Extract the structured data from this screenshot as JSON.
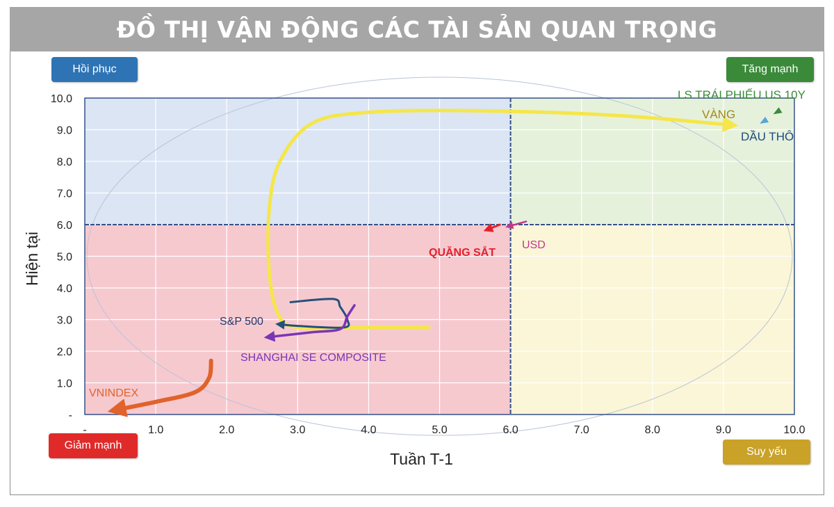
{
  "header": {
    "title": "ĐỒ THỊ VẬN ĐỘNG CÁC TÀI SẢN QUAN TRỌNG"
  },
  "quadrants": {
    "top_left": {
      "label": "Hồi phục",
      "color": "#2e74b5"
    },
    "top_right": {
      "label": "Tăng mạnh",
      "color": "#3a8a3a"
    },
    "bottom_left": {
      "label": "Giảm mạnh",
      "color": "#e02a2a"
    },
    "bottom_right": {
      "label": "Suy yếu",
      "color": "#c9a227"
    }
  },
  "chart_data": {
    "type": "scatter",
    "title": "ĐỒ THỊ VẬN ĐỘNG CÁC TÀI SẢN QUAN TRỌNG",
    "xlabel": "Tuần T-1",
    "ylabel": "Hiện tại",
    "xlim": [
      0,
      10
    ],
    "ylim": [
      0,
      10
    ],
    "xticks": [
      "-",
      "1.0",
      "2.0",
      "3.0",
      "4.0",
      "5.0",
      "6.0",
      "7.0",
      "8.0",
      "9.0",
      "10.0"
    ],
    "yticks": [
      "-",
      "1.0",
      "2.0",
      "3.0",
      "4.0",
      "5.0",
      "6.0",
      "7.0",
      "8.0",
      "9.0",
      "10.0"
    ],
    "threshold": {
      "x": 6.0,
      "y": 6.0
    },
    "grid": true,
    "quadrant_colors": {
      "top_left": "#dbe5f4",
      "top_right": "#e6f1dc",
      "bottom_left": "#f6c9cf",
      "bottom_right": "#fbf6d7"
    },
    "series": [
      {
        "name": "VÀNG",
        "color": "#f5e64a",
        "label_color": "#a08a18",
        "points": [
          [
            4.85,
            2.75
          ],
          [
            4.0,
            2.75
          ],
          [
            3.0,
            2.75
          ],
          [
            2.72,
            3.2
          ],
          [
            2.6,
            4.5
          ],
          [
            2.6,
            6.5
          ],
          [
            2.75,
            8.0
          ],
          [
            3.2,
            9.2
          ],
          [
            4.0,
            9.55
          ],
          [
            5.5,
            9.6
          ],
          [
            7.5,
            9.45
          ],
          [
            9.1,
            9.15
          ]
        ]
      },
      {
        "name": "VNINDEX",
        "color": "#e0632b",
        "label_color": "#e0632b",
        "points": [
          [
            1.78,
            1.7
          ],
          [
            1.75,
            1.15
          ],
          [
            1.55,
            0.7
          ],
          [
            1.0,
            0.4
          ],
          [
            0.45,
            0.15
          ]
        ]
      },
      {
        "name": "S&P 500",
        "color": "#23507c",
        "label_color": "#1f3a6e",
        "points": [
          [
            2.9,
            3.55
          ],
          [
            3.5,
            3.65
          ],
          [
            3.6,
            3.4
          ],
          [
            3.7,
            3.0
          ],
          [
            3.65,
            2.75
          ],
          [
            3.0,
            2.8
          ],
          [
            2.75,
            2.85
          ]
        ]
      },
      {
        "name": "SHANGHAI SE COMPOSITE",
        "color": "#7a35b5",
        "label_color": "#7a35b5",
        "points": [
          [
            3.8,
            3.45
          ],
          [
            3.7,
            3.1
          ],
          [
            3.6,
            2.7
          ],
          [
            3.2,
            2.6
          ],
          [
            2.6,
            2.45
          ]
        ]
      },
      {
        "name": "QUẶNG SẮT",
        "color": "#e3212b",
        "label_color": "#e3212b",
        "points": [
          [
            5.85,
            6.0
          ],
          [
            5.68,
            5.85
          ]
        ]
      },
      {
        "name": "USD",
        "color": "#c2378a",
        "label_color": "#c2378a",
        "points": [
          [
            6.22,
            6.1
          ],
          [
            5.98,
            5.95
          ]
        ]
      },
      {
        "name": "DẦU THÔ",
        "color": "#5aa4dc",
        "label_color": "#1f4a7e",
        "points": [
          [
            9.58,
            9.3
          ]
        ]
      },
      {
        "name": "LS TRÁI PHIẾU US 10Y",
        "color": "#3a8a3a",
        "label_color": "#3a8a3a",
        "points": [
          [
            9.77,
            9.6
          ]
        ]
      }
    ]
  }
}
